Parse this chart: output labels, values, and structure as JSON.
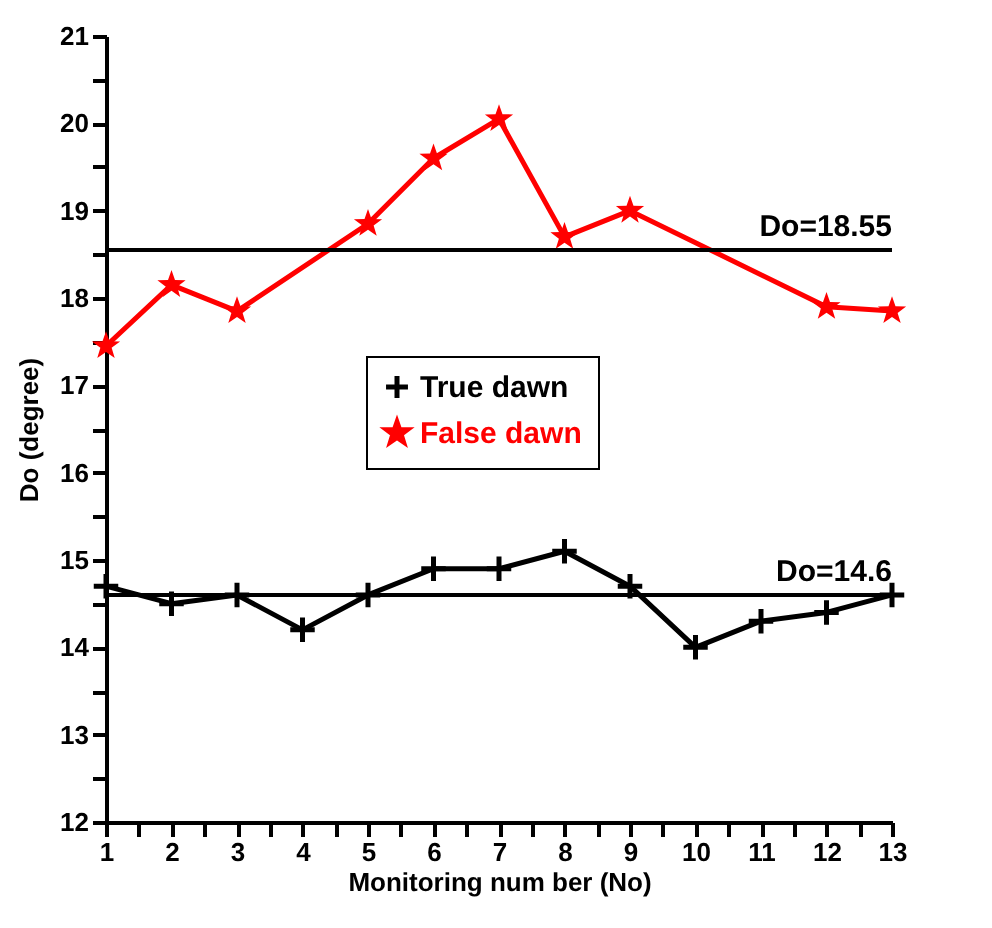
{
  "chart_data": {
    "type": "line",
    "xlabel": "Monitoring num ber (No)",
    "ylabel": "Do (degree)",
    "xlim": [
      1,
      13
    ],
    "ylim": [
      12,
      21
    ],
    "xticks": [
      1,
      {
        "value": 1.5,
        "label": null
      },
      2,
      {
        "value": 2.5,
        "label": null
      },
      3,
      {
        "value": 3.5,
        "label": null
      },
      4,
      {
        "value": 4.5,
        "label": null
      },
      5,
      {
        "value": 5.5,
        "label": null
      },
      6,
      {
        "value": 6.5,
        "label": null
      },
      7,
      {
        "value": 7.5,
        "label": null
      },
      8,
      {
        "value": 8.5,
        "label": null
      },
      9,
      {
        "value": 9.5,
        "label": null
      },
      10,
      {
        "value": 10.5,
        "label": null
      },
      11,
      {
        "value": 11.5,
        "label": null
      },
      12,
      {
        "value": 12.5,
        "label": null
      },
      13
    ],
    "yticks": [
      12,
      {
        "value": 12.5,
        "label": null
      },
      13,
      {
        "value": 13.5,
        "label": null
      },
      14,
      {
        "value": 14.5,
        "label": null
      },
      15,
      {
        "value": 15.5,
        "label": null
      },
      16,
      {
        "value": 16.5,
        "label": null
      },
      17,
      {
        "value": 17.5,
        "label": null
      },
      18,
      {
        "value": 18.5,
        "label": null
      },
      19,
      {
        "value": 19.5,
        "label": null
      },
      20,
      {
        "value": 20.5,
        "label": null
      },
      21
    ],
    "grid": false,
    "legend": "top",
    "series": [
      {
        "name": "True dawn",
        "color": "#000000",
        "marker": "cross",
        "x": [
          1,
          2,
          3,
          4,
          5,
          6,
          7,
          8,
          9,
          10,
          11,
          12,
          13
        ],
        "values": [
          14.7,
          14.5,
          14.6,
          14.2,
          14.6,
          14.9,
          14.9,
          15.1,
          14.7,
          14.0,
          14.3,
          14.4,
          14.6
        ]
      },
      {
        "name": "False dawn",
        "color": "#ff0000",
        "marker": "star",
        "x": [
          1,
          2,
          3,
          5,
          6,
          7,
          8,
          9,
          12,
          13
        ],
        "values": [
          17.45,
          18.15,
          17.85,
          18.85,
          19.6,
          20.05,
          18.7,
          19.0,
          17.9,
          17.85
        ]
      }
    ],
    "ref_lines": [
      {
        "axis": "y",
        "value": 18.55,
        "label": "Do=18.55",
        "color": "#000000"
      },
      {
        "axis": "y",
        "value": 14.6,
        "label": "Do=14.6",
        "color": "#000000"
      }
    ]
  }
}
